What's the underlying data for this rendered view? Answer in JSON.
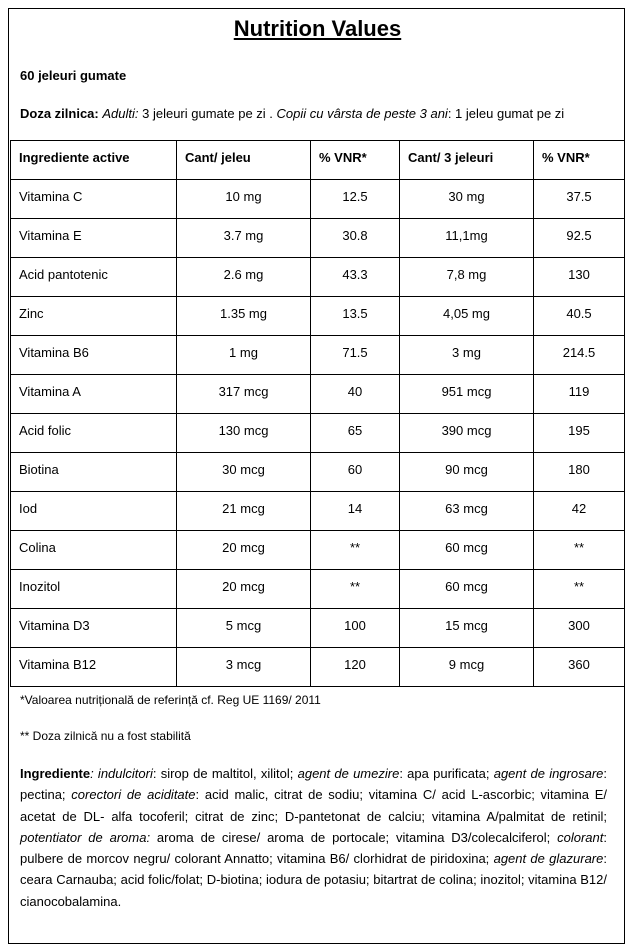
{
  "title": "Nutrition Values",
  "count_line": "60  jeleuri gumate",
  "dose": {
    "label": "Doza zilnica:",
    "adults_label": "Adulti:",
    "adults_text": " 3 jeleuri gumate pe zi . ",
    "children_label": "Copii cu vârsta de peste 3 ani",
    "children_text": ": 1 jeleu gumat pe zi"
  },
  "table": {
    "headers": [
      "Ingrediente  active",
      "Cant/ jeleu",
      "% VNR*",
      "Cant/ 3 jeleuri",
      "% VNR*"
    ],
    "rows": [
      [
        "Vitamina C",
        "10 mg",
        "12.5",
        "30 mg",
        "37.5"
      ],
      [
        "Vitamina E",
        "3.7 mg",
        "30.8",
        "11,1mg",
        "92.5"
      ],
      [
        "Acid pantotenic",
        "2.6 mg",
        "43.3",
        "7,8 mg",
        "130"
      ],
      [
        "Zinc",
        "1.35 mg",
        "13.5",
        "4,05 mg",
        "40.5"
      ],
      [
        "Vitamina B6",
        "1 mg",
        "71.5",
        "3 mg",
        "214.5"
      ],
      [
        "Vitamina A",
        "317 mcg",
        "40",
        "951 mcg",
        "119"
      ],
      [
        "Acid folic",
        "130 mcg",
        "65",
        "390 mcg",
        "195"
      ],
      [
        "Biotina",
        "30 mcg",
        "60",
        "90 mcg",
        "180"
      ],
      [
        "Iod",
        "21 mcg",
        "14",
        "63 mcg",
        "42"
      ],
      [
        "Colina",
        "20 mcg",
        "**",
        "60 mcg",
        "**"
      ],
      [
        "Inozitol",
        "20 mcg",
        "**",
        "60 mcg",
        "**"
      ],
      [
        "Vitamina D3",
        "5 mcg",
        "100",
        "15 mcg",
        "300"
      ],
      [
        "Vitamina B12",
        "3 mcg",
        "120",
        "9 mcg",
        "360"
      ]
    ]
  },
  "notes": {
    "vnr": "*Valoarea nutrițională de referință cf. Reg UE 1169/ 2011",
    "dose": "** Doza zilnică nu a fost stabilită"
  },
  "ingredients": [
    {
      "t": "Ingrediente",
      "s": "b"
    },
    {
      "t": ": indulcitori",
      "s": "i"
    },
    {
      "t": ": sirop de maltitol, xilitol; ",
      "s": "n"
    },
    {
      "t": "agent de umezire",
      "s": "i"
    },
    {
      "t": ": apa purificata;  ",
      "s": "n"
    },
    {
      "t": "agent de ingrosare",
      "s": "i"
    },
    {
      "t": ": pectina; ",
      "s": "n"
    },
    {
      "t": "corectori de aciditate",
      "s": "i"
    },
    {
      "t": ": acid malic, citrat de sodiu; vitamina C/ acid L-ascorbic; vitamina E/ acetat de DL- alfa tocoferil; citrat de zinc; D-pantetonat de calciu; vitamina A/palmitat de retinil; ",
      "s": "n"
    },
    {
      "t": "potentiator de aroma:",
      "s": "i"
    },
    {
      "t": " aroma de cirese/ aroma de portocale; vitamina D3/colecalciferol; ",
      "s": "n"
    },
    {
      "t": "colorant",
      "s": "i"
    },
    {
      "t": ": pulbere de morcov negru/ colorant Annatto;  vitamina B6/ clorhidrat de piridoxina; ",
      "s": "n"
    },
    {
      "t": "agent de glazurare",
      "s": "i"
    },
    {
      "t": ": ceara Carnauba; acid folic/folat; D-biotina; iodura de potasiu; bitartrat de colina; inozitol; vitamina B12/ cianocobalamina.",
      "s": "n"
    }
  ]
}
